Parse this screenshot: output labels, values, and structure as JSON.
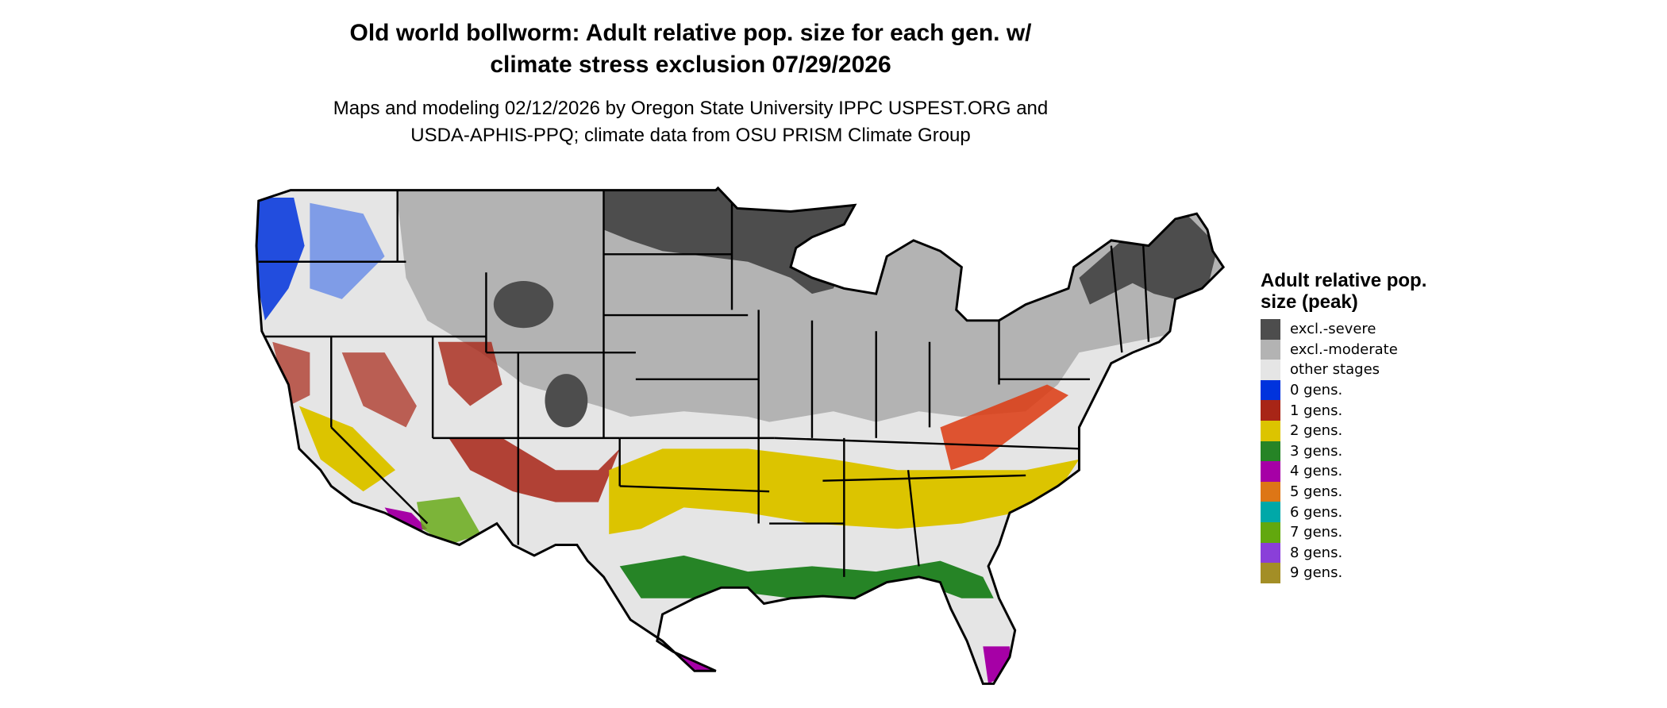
{
  "title_line1": "Old world bollworm: Adult relative pop. size for each gen. w/",
  "title_line2": "climate stress exclusion 07/29/2026",
  "subtitle_line1": "Maps and modeling 02/12/2026 by Oregon State University IPPC USPEST.ORG and",
  "subtitle_line2": "USDA-APHIS-PPQ; climate data from OSU PRISM Climate Group",
  "legend": {
    "title": "Adult relative pop. size (peak)",
    "items": [
      {
        "label": "excl.-severe",
        "color": "#4d4d4d"
      },
      {
        "label": "excl.-moderate",
        "color": "#b3b3b3"
      },
      {
        "label": "other stages",
        "color": "#e5e5e5"
      },
      {
        "label": "0 gens.",
        "color": "#0033dd"
      },
      {
        "label": "1 gens.",
        "color": "#a82516"
      },
      {
        "label": "2 gens.",
        "color": "#dcc400"
      },
      {
        "label": "3 gens.",
        "color": "#268426"
      },
      {
        "label": "4 gens.",
        "color": "#a600a6"
      },
      {
        "label": "5 gens.",
        "color": "#dd7616"
      },
      {
        "label": "6 gens.",
        "color": "#00a8a8"
      },
      {
        "label": "7 gens.",
        "color": "#62a80e"
      },
      {
        "label": "8 gens.",
        "color": "#8a3fd9"
      },
      {
        "label": "9 gens.",
        "color": "#a38e26"
      }
    ]
  }
}
